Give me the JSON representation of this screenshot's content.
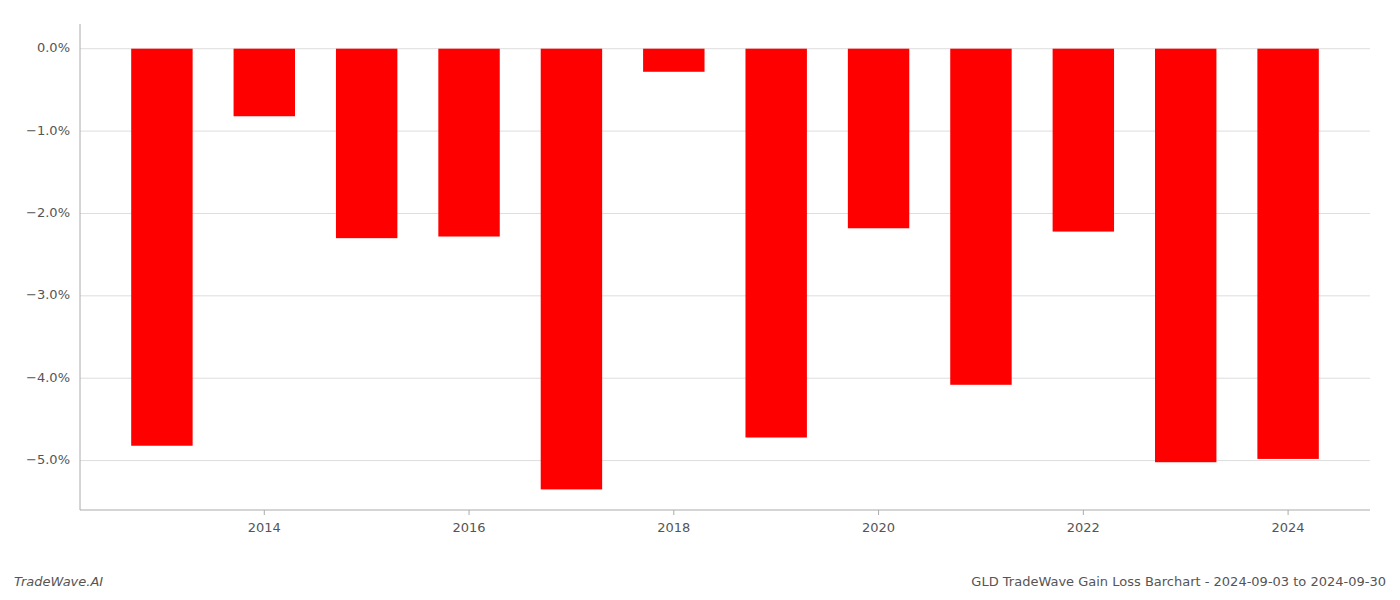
{
  "chart_data": {
    "type": "bar",
    "title": "GLD TradeWave Gain Loss Barchart - 2024-09-03 to 2024-09-30",
    "annotations": [
      "TradeWave.AI"
    ],
    "x": [
      2013,
      2014,
      2015,
      2016,
      2017,
      2018,
      2019,
      2020,
      2021,
      2022,
      2023,
      2024
    ],
    "values": [
      -0.0482,
      -0.0082,
      -0.023,
      -0.0228,
      -0.0535,
      -0.0028,
      -0.0472,
      -0.0218,
      -0.0408,
      -0.0222,
      -0.0502,
      -0.0498
    ],
    "color": "#ff0000",
    "xlim": [
      2012.2,
      2024.8
    ],
    "xticks": [
      2014,
      2016,
      2018,
      2020,
      2022,
      2024
    ],
    "ylim": [
      -0.056,
      0.003
    ],
    "yticks": [
      {
        "value": 0.0,
        "label": "0.0%"
      },
      {
        "value": -0.01,
        "label": "−1.0%"
      },
      {
        "value": -0.02,
        "label": "−2.0%"
      },
      {
        "value": -0.03,
        "label": "−3.0%"
      },
      {
        "value": -0.04,
        "label": "−4.0%"
      },
      {
        "value": -0.05,
        "label": "−5.0%"
      }
    ],
    "grid": true
  }
}
